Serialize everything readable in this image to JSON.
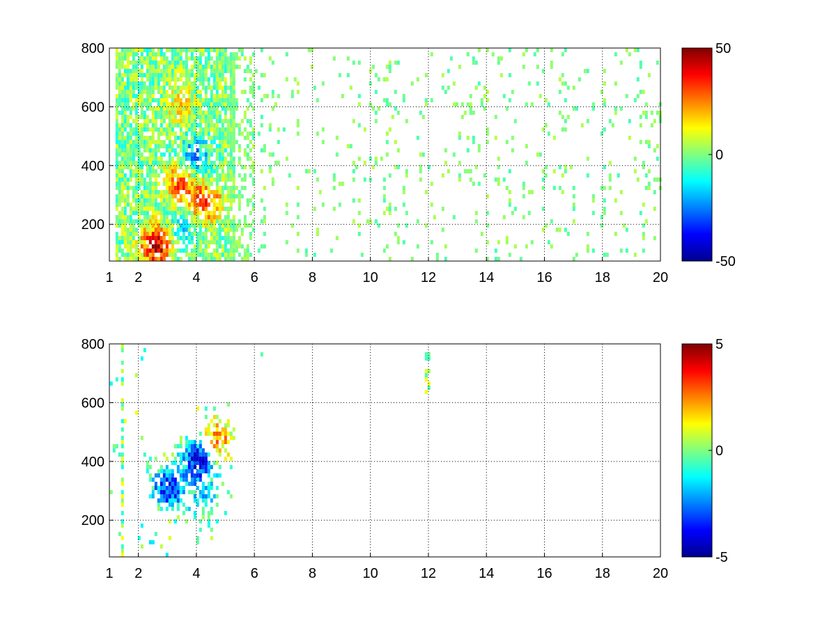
{
  "chart_data": [
    {
      "type": "heatmap",
      "title": "",
      "xlabel": "",
      "ylabel": "",
      "xlim": [
        1,
        20
      ],
      "ylim": [
        75,
        800
      ],
      "xticks": [
        "1",
        "2",
        "4",
        "6",
        "8",
        "10",
        "12",
        "14",
        "16",
        "18",
        "20"
      ],
      "yticks": [
        "200",
        "400",
        "600",
        "800"
      ],
      "grid": true,
      "colormap": "jet",
      "colorbar": {
        "min": -50,
        "max": 50,
        "ticks": [
          "50",
          "0",
          "-50"
        ]
      },
      "blobs": [
        {
          "x": 2.6,
          "y": 120,
          "value": 45
        },
        {
          "x": 3.4,
          "y": 330,
          "value": 28
        },
        {
          "x": 4.3,
          "y": 270,
          "value": 30
        },
        {
          "x": 3.9,
          "y": 420,
          "value": -22
        },
        {
          "x": 3.4,
          "y": 600,
          "value": 12
        },
        {
          "x": 3.4,
          "y": 160,
          "value": -15
        }
      ]
    },
    {
      "type": "heatmap",
      "title": "",
      "xlabel": "",
      "ylabel": "",
      "xlim": [
        1,
        20
      ],
      "ylim": [
        75,
        800
      ],
      "xticks": [
        "1",
        "2",
        "4",
        "6",
        "8",
        "10",
        "12",
        "14",
        "16",
        "18",
        "20"
      ],
      "yticks": [
        "200",
        "400",
        "600",
        "800"
      ],
      "grid": true,
      "colormap": "jet",
      "colorbar": {
        "min": -5,
        "max": 5,
        "ticks": [
          "5",
          "0",
          "-5"
        ]
      },
      "blobs": [
        {
          "x": 4.1,
          "y": 400,
          "value": -4.5
        },
        {
          "x": 3.0,
          "y": 300,
          "value": -3.5
        },
        {
          "x": 4.3,
          "y": 260,
          "value": -1.5
        },
        {
          "x": 2.5,
          "y": 120,
          "value": -0.5
        },
        {
          "x": 4.6,
          "y": 460,
          "value": 3
        }
      ]
    }
  ]
}
